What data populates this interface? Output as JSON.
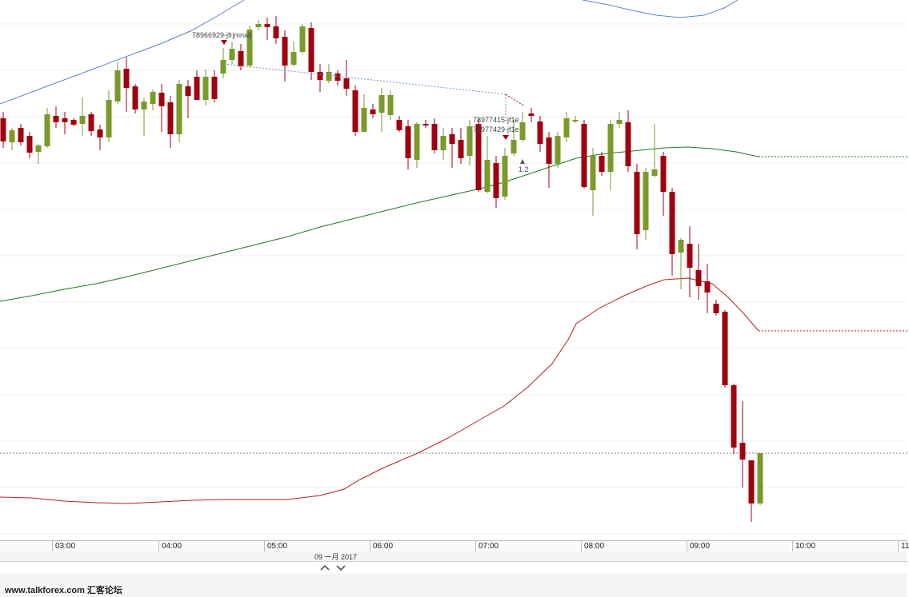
{
  "chart_data": {
    "type": "candlestick",
    "time_axis": {
      "ticks": [
        "03:00",
        "04:00",
        "05:00",
        "06:00",
        "07:00",
        "08:00",
        "09:00",
        "10:00",
        "11"
      ],
      "date": "09 一月 2017"
    },
    "colors": {
      "up": "#7a9a2a",
      "down": "#a00010",
      "ma_green": "#1e7a1e",
      "ma_red": "#b22222",
      "band_blue": "#5a86c8",
      "order_line": "#6e93c9",
      "hline": "#8a8a8a"
    },
    "order_labels": [
      {
        "text": "78966929-jfrjmnalj",
        "marker": "down"
      },
      {
        "text": "78977415-jf1e",
        "marker": "none"
      },
      {
        "text": "78977429-jf1e",
        "marker": "down"
      },
      {
        "text": "1.2",
        "marker": "up"
      }
    ]
  },
  "footer": {
    "watermark": "www.talkforex.com 汇客论坛"
  },
  "controls": {
    "scroll_up_icon": "chevron-up-icon",
    "scroll_down_icon": "chevron-down-icon"
  }
}
